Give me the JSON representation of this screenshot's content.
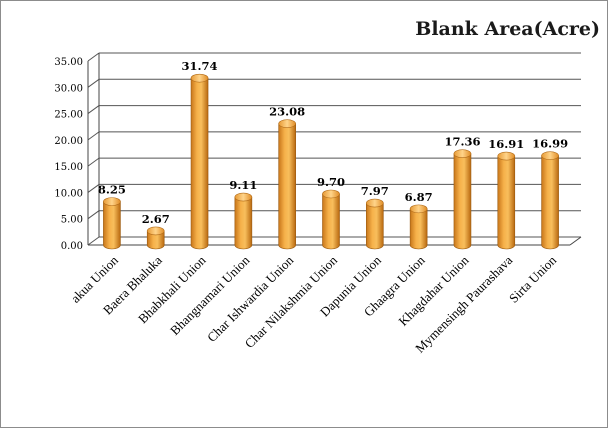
{
  "chart_data": {
    "type": "bar",
    "title": "Blank Area(Acre)",
    "xlabel": "",
    "ylabel": "",
    "categories": [
      "akua Union",
      "Baera Bhaluka",
      "Bhabkhali Union",
      "Bhangnamari Union",
      "Char Ishwardia Union",
      "Char Nilakshmia Union",
      "Dapunia Union",
      "Ghaagra Union",
      "Khagdahar Union",
      "Mymensingh Paurashava",
      "Sirta Union"
    ],
    "values": [
      8.25,
      2.67,
      31.74,
      9.11,
      23.08,
      9.7,
      7.97,
      6.87,
      17.36,
      16.91,
      16.99
    ],
    "value_labels": [
      "8.25",
      "2.67",
      "31.74",
      "9.11",
      "23.08",
      "9.70",
      "7.97",
      "6.87",
      "17.36",
      "16.91",
      "16.99"
    ],
    "ylim": [
      0,
      35
    ],
    "yticks": [
      "0.00",
      "5.00",
      "10.00",
      "15.00",
      "20.00",
      "25.00",
      "30.00",
      "35.00"
    ],
    "grid": true,
    "legend": "none",
    "bar_color": "#F0A030"
  }
}
